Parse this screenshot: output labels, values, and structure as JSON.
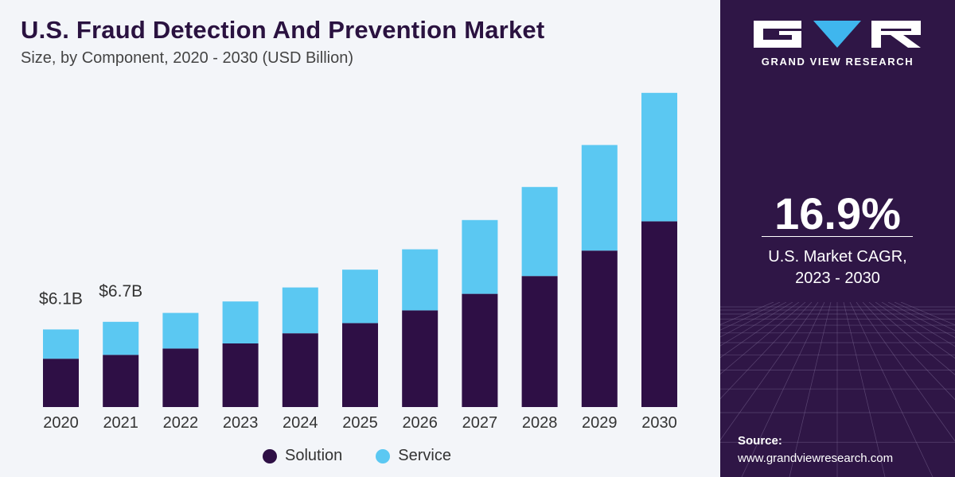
{
  "chart_data": {
    "type": "bar",
    "stacked": true,
    "title": "U.S. Fraud Detection And Prevention Market",
    "subtitle": "Size, by Component, 2020 - 2030 (USD Billion)",
    "categories": [
      "2020",
      "2021",
      "2022",
      "2023",
      "2024",
      "2025",
      "2026",
      "2027",
      "2028",
      "2029",
      "2030"
    ],
    "series": [
      {
        "name": "Solution",
        "color": "#2e0f45",
        "values": [
          3.8,
          4.1,
          4.6,
          5.0,
          5.8,
          6.6,
          7.6,
          8.9,
          10.3,
          12.3,
          14.6
        ]
      },
      {
        "name": "Service",
        "color": "#5bc8f2",
        "values": [
          2.3,
          2.6,
          2.8,
          3.3,
          3.6,
          4.2,
          4.8,
          5.8,
          7.0,
          8.3,
          10.1
        ]
      }
    ],
    "data_labels": [
      {
        "category": "2020",
        "text": "$6.1B"
      },
      {
        "category": "2021",
        "text": "$6.7B"
      }
    ],
    "ylim": [
      0,
      25
    ],
    "grid": false,
    "legend": "bottom-center"
  },
  "sidebar": {
    "brand": "GRAND VIEW RESEARCH",
    "cagr_value": "16.9%",
    "cagr_label_line1": "U.S. Market CAGR,",
    "cagr_label_line2": "2023 - 2030",
    "source_title": "Source:",
    "source_url": "www.grandviewresearch.com",
    "colors": {
      "panel": "#2f1646",
      "logo_accent": "#3fb6ee"
    }
  }
}
